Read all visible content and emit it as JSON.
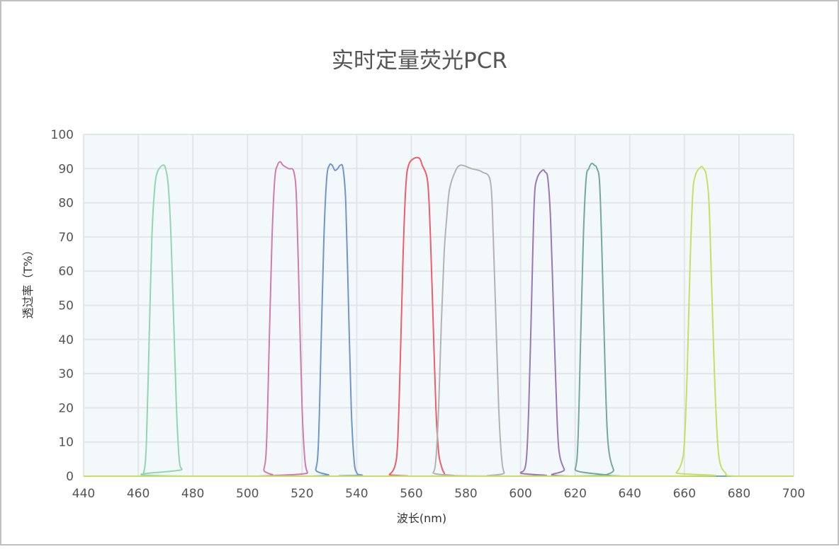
{
  "chart_data": {
    "type": "line",
    "title": "实时定量荧光PCR",
    "xlabel": "波长(nm)",
    "ylabel": "透过率（T%）",
    "xlim": [
      440,
      700
    ],
    "ylim": [
      0,
      100
    ],
    "xticks": [
      440,
      460,
      480,
      500,
      520,
      540,
      560,
      580,
      600,
      620,
      640,
      660,
      680,
      700
    ],
    "yticks": [
      0,
      10,
      20,
      30,
      40,
      50,
      60,
      70,
      80,
      90,
      100
    ],
    "grid": true,
    "plot_background": "#f3f8fb",
    "series": [
      {
        "color": "#93d6ad",
        "points": [
          [
            460,
            0
          ],
          [
            462,
            1
          ],
          [
            463,
            10
          ],
          [
            464,
            40
          ],
          [
            465,
            70
          ],
          [
            466,
            84
          ],
          [
            467,
            89
          ],
          [
            469,
            91
          ],
          [
            470,
            90
          ],
          [
            471,
            85
          ],
          [
            472,
            70
          ],
          [
            473,
            45
          ],
          [
            474,
            20
          ],
          [
            475,
            5
          ],
          [
            476,
            2
          ],
          [
            478,
            0
          ]
        ]
      },
      {
        "color": "#d27bad",
        "points": [
          [
            504,
            0
          ],
          [
            506,
            2
          ],
          [
            507,
            10
          ],
          [
            508,
            40
          ],
          [
            509,
            70
          ],
          [
            510,
            87
          ],
          [
            511,
            91
          ],
          [
            512,
            92
          ],
          [
            513,
            91
          ],
          [
            515,
            90
          ],
          [
            517,
            89
          ],
          [
            518,
            80
          ],
          [
            519,
            50
          ],
          [
            520,
            20
          ],
          [
            521,
            5
          ],
          [
            522,
            1
          ],
          [
            523,
            0
          ]
        ]
      },
      {
        "color": "#6e97cf",
        "points": [
          [
            523,
            0
          ],
          [
            525,
            2
          ],
          [
            526,
            10
          ],
          [
            527,
            40
          ],
          [
            528,
            70
          ],
          [
            529,
            87
          ],
          [
            530,
            91
          ],
          [
            531,
            91
          ],
          [
            532,
            89.5
          ],
          [
            533,
            90
          ],
          [
            534,
            91
          ],
          [
            535,
            90
          ],
          [
            536,
            80
          ],
          [
            537,
            50
          ],
          [
            538,
            20
          ],
          [
            539,
            5
          ],
          [
            540,
            1
          ],
          [
            542,
            0.3
          ],
          [
            546,
            0
          ]
        ]
      },
      {
        "color": "#ea5f69",
        "points": [
          [
            550,
            0
          ],
          [
            552,
            0.5
          ],
          [
            554,
            3
          ],
          [
            555,
            10
          ],
          [
            556,
            35
          ],
          [
            557,
            65
          ],
          [
            558,
            85
          ],
          [
            559,
            91
          ],
          [
            561,
            93
          ],
          [
            563,
            93
          ],
          [
            564,
            91
          ],
          [
            566,
            86
          ],
          [
            567,
            70
          ],
          [
            568,
            45
          ],
          [
            569,
            20
          ],
          [
            570,
            7
          ],
          [
            571,
            3
          ],
          [
            572,
            1
          ],
          [
            574,
            0.3
          ],
          [
            590,
            0
          ]
        ]
      },
      {
        "color": "#b3b3b3",
        "points": [
          [
            566,
            0
          ],
          [
            568,
            1
          ],
          [
            569,
            5
          ],
          [
            570,
            20
          ],
          [
            571,
            45
          ],
          [
            572,
            65
          ],
          [
            573,
            76
          ],
          [
            574,
            84
          ],
          [
            576,
            89
          ],
          [
            578,
            91
          ],
          [
            582,
            90
          ],
          [
            586,
            89
          ],
          [
            589,
            86
          ],
          [
            590,
            70
          ],
          [
            591,
            45
          ],
          [
            592,
            20
          ],
          [
            593,
            6
          ],
          [
            594,
            1
          ],
          [
            596,
            0
          ]
        ]
      },
      {
        "color": "#9b78b5",
        "points": [
          [
            597,
            0
          ],
          [
            600,
            1
          ],
          [
            602,
            4
          ],
          [
            603,
            20
          ],
          [
            604,
            50
          ],
          [
            605,
            80
          ],
          [
            606,
            87
          ],
          [
            608,
            89.5
          ],
          [
            609,
            89
          ],
          [
            610,
            87
          ],
          [
            611,
            75
          ],
          [
            612,
            50
          ],
          [
            613,
            25
          ],
          [
            614,
            8
          ],
          [
            616,
            2
          ],
          [
            618,
            0
          ]
        ]
      },
      {
        "color": "#73aa99",
        "points": [
          [
            618,
            0
          ],
          [
            620,
            2
          ],
          [
            621,
            10
          ],
          [
            622,
            40
          ],
          [
            623,
            70
          ],
          [
            624,
            87
          ],
          [
            625,
            90
          ],
          [
            626,
            91.5
          ],
          [
            627,
            91
          ],
          [
            628,
            90
          ],
          [
            629,
            85
          ],
          [
            630,
            60
          ],
          [
            631,
            30
          ],
          [
            632,
            10
          ],
          [
            634,
            2
          ],
          [
            637,
            0
          ]
        ]
      },
      {
        "color": "#c4e065",
        "points": [
          [
            655,
            0
          ],
          [
            657,
            1
          ],
          [
            659,
            4
          ],
          [
            660,
            10
          ],
          [
            661,
            30
          ],
          [
            662,
            60
          ],
          [
            663,
            82
          ],
          [
            664,
            88
          ],
          [
            666,
            90.5
          ],
          [
            667,
            90
          ],
          [
            668,
            88
          ],
          [
            669,
            80
          ],
          [
            670,
            55
          ],
          [
            671,
            30
          ],
          [
            672,
            12
          ],
          [
            673,
            4
          ],
          [
            675,
            1
          ],
          [
            678,
            0
          ]
        ]
      }
    ]
  }
}
